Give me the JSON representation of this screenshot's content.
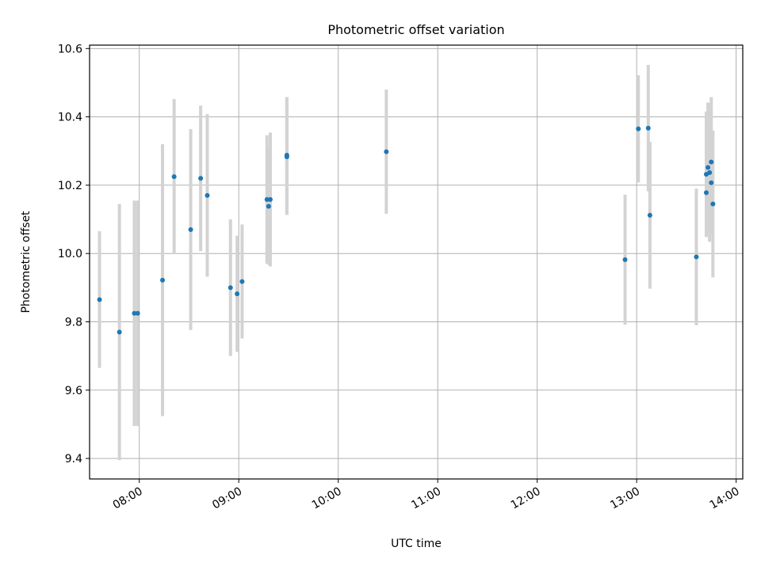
{
  "chart_data": {
    "type": "scatter",
    "title": "Photometric offset variation",
    "xlabel": "UTC time",
    "ylabel": "Photometric offset",
    "x_tick_labels": [
      "08:00",
      "09:00",
      "10:00",
      "11:00",
      "12:00",
      "13:00",
      "14:00"
    ],
    "y_tick_labels": [
      "9.4",
      "9.6",
      "9.8",
      "10.0",
      "10.2",
      "10.4",
      "10.6"
    ],
    "xlim": [
      "07:30",
      "14:04"
    ],
    "ylim": [
      9.34,
      10.61
    ],
    "grid": true,
    "colors": {
      "points": "#1f77b4",
      "errorbars": "#d3d3d3",
      "grid": "#b0b0b0"
    },
    "points": [
      {
        "x": "07:36",
        "y": 9.865,
        "err": 0.2
      },
      {
        "x": "07:48",
        "y": 9.77,
        "err": 0.375
      },
      {
        "x": "07:57",
        "y": 9.825,
        "err": 0.33
      },
      {
        "x": "07:59",
        "y": 9.825,
        "err": 0.33
      },
      {
        "x": "08:14",
        "y": 9.922,
        "err": 0.398
      },
      {
        "x": "08:21",
        "y": 10.225,
        "err": 0.227
      },
      {
        "x": "08:31",
        "y": 10.07,
        "err": 0.294
      },
      {
        "x": "08:37",
        "y": 10.22,
        "err": 0.213
      },
      {
        "x": "08:41",
        "y": 10.17,
        "err": 0.238
      },
      {
        "x": "08:55",
        "y": 9.9,
        "err": 0.2
      },
      {
        "x": "08:59",
        "y": 9.882,
        "err": 0.17
      },
      {
        "x": "09:02",
        "y": 9.918,
        "err": 0.167
      },
      {
        "x": "09:17",
        "y": 10.158,
        "err": 0.188
      },
      {
        "x": "09:18",
        "y": 10.138,
        "err": 0.171
      },
      {
        "x": "09:19",
        "y": 10.158,
        "err": 0.196
      },
      {
        "x": "09:29",
        "y": 10.288,
        "err": 0.17
      },
      {
        "x": "09:29",
        "y": 10.283,
        "err": 0.17
      },
      {
        "x": "10:29",
        "y": 10.298,
        "err": 0.182
      },
      {
        "x": "12:53",
        "y": 9.982,
        "err": 0.19
      },
      {
        "x": "13:01",
        "y": 10.365,
        "err": 0.157
      },
      {
        "x": "13:07",
        "y": 10.367,
        "err": 0.185
      },
      {
        "x": "13:08",
        "y": 10.112,
        "err": 0.215
      },
      {
        "x": "13:36",
        "y": 9.99,
        "err": 0.2
      },
      {
        "x": "13:42",
        "y": 10.232,
        "err": 0.184
      },
      {
        "x": "13:42",
        "y": 10.178,
        "err": 0.13
      },
      {
        "x": "13:43",
        "y": 10.252,
        "err": 0.19
      },
      {
        "x": "13:44",
        "y": 10.237,
        "err": 0.203
      },
      {
        "x": "13:45",
        "y": 10.207,
        "err": 0.15
      },
      {
        "x": "13:45",
        "y": 10.268,
        "err": 0.19
      },
      {
        "x": "13:46",
        "y": 10.145,
        "err": 0.215
      }
    ]
  }
}
